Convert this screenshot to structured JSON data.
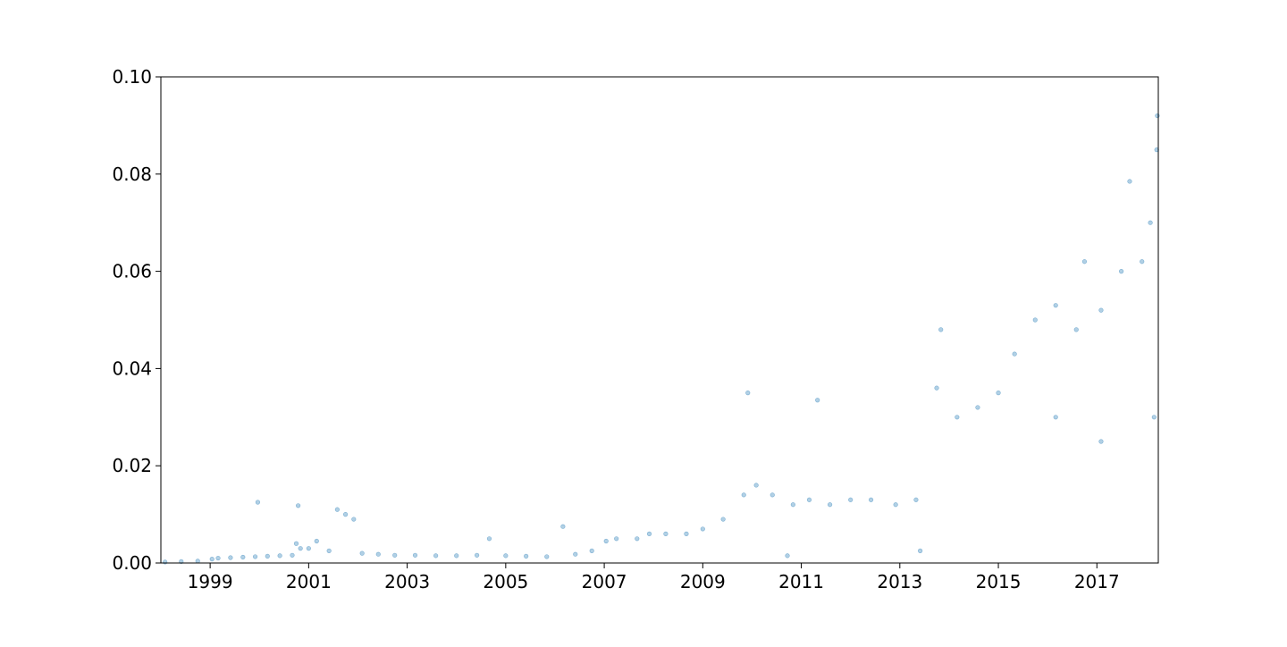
{
  "chart_data": {
    "type": "scatter",
    "title": "",
    "xlabel": "",
    "ylabel": "",
    "x_axis_type": "date",
    "xlim": [
      "1998-01-01",
      "2018-04-01"
    ],
    "ylim": [
      0.0,
      0.1
    ],
    "x_tick_labels": [
      "1999",
      "2001",
      "2003",
      "2005",
      "2007",
      "2009",
      "2011",
      "2013",
      "2015",
      "2017"
    ],
    "y_tick_labels": [
      "0.00",
      "0.02",
      "0.04",
      "0.06",
      "0.08",
      "0.10"
    ],
    "grid": false,
    "legend": "none",
    "marker_color": "#1f77b4",
    "marker_alpha": 0.35,
    "series": [
      {
        "points": [
          [
            "1998-02-01",
            0.0002
          ],
          [
            "1998-06-01",
            0.0003
          ],
          [
            "1998-10-01",
            0.0004
          ],
          [
            "1999-01-15",
            0.0008
          ],
          [
            "1999-03-01",
            0.001
          ],
          [
            "1999-06-01",
            0.0011
          ],
          [
            "1999-09-01",
            0.0012
          ],
          [
            "1999-12-01",
            0.0013
          ],
          [
            "1999-12-20",
            0.0125
          ],
          [
            "2000-03-01",
            0.0014
          ],
          [
            "2000-06-01",
            0.0015
          ],
          [
            "2000-09-01",
            0.0016
          ],
          [
            "2000-10-01",
            0.004
          ],
          [
            "2000-11-01",
            0.003
          ],
          [
            "2000-10-15",
            0.0118
          ],
          [
            "2001-01-01",
            0.003
          ],
          [
            "2001-03-01",
            0.0045
          ],
          [
            "2001-06-01",
            0.0025
          ],
          [
            "2001-08-01",
            0.011
          ],
          [
            "2001-10-01",
            0.01
          ],
          [
            "2001-12-01",
            0.009
          ],
          [
            "2002-02-01",
            0.002
          ],
          [
            "2002-06-01",
            0.0018
          ],
          [
            "2002-10-01",
            0.0016
          ],
          [
            "2003-03-01",
            0.0016
          ],
          [
            "2003-08-01",
            0.0015
          ],
          [
            "2004-01-01",
            0.0015
          ],
          [
            "2004-06-01",
            0.0016
          ],
          [
            "2004-09-01",
            0.005
          ],
          [
            "2005-01-01",
            0.0015
          ],
          [
            "2005-06-01",
            0.0014
          ],
          [
            "2005-11-01",
            0.0013
          ],
          [
            "2006-03-01",
            0.0075
          ],
          [
            "2006-06-01",
            0.0018
          ],
          [
            "2006-10-01",
            0.0025
          ],
          [
            "2007-01-15",
            0.0045
          ],
          [
            "2007-04-01",
            0.005
          ],
          [
            "2007-09-01",
            0.005
          ],
          [
            "2007-12-01",
            0.006
          ],
          [
            "2008-04-01",
            0.006
          ],
          [
            "2008-09-01",
            0.006
          ],
          [
            "2009-01-01",
            0.007
          ],
          [
            "2009-06-01",
            0.009
          ],
          [
            "2009-11-01",
            0.014
          ],
          [
            "2009-12-01",
            0.035
          ],
          [
            "2010-02-01",
            0.016
          ],
          [
            "2010-06-01",
            0.014
          ],
          [
            "2010-09-20",
            0.0015
          ],
          [
            "2010-11-01",
            0.012
          ],
          [
            "2011-03-01",
            0.013
          ],
          [
            "2011-05-01",
            0.0335
          ],
          [
            "2011-08-01",
            0.012
          ],
          [
            "2012-01-01",
            0.013
          ],
          [
            "2012-06-01",
            0.013
          ],
          [
            "2012-12-01",
            0.012
          ],
          [
            "2013-05-01",
            0.013
          ],
          [
            "2013-06-01",
            0.0025
          ],
          [
            "2013-10-01",
            0.036
          ],
          [
            "2013-11-01",
            0.048
          ],
          [
            "2014-03-01",
            0.03
          ],
          [
            "2014-08-01",
            0.032
          ],
          [
            "2015-01-01",
            0.035
          ],
          [
            "2015-05-01",
            0.043
          ],
          [
            "2015-10-01",
            0.05
          ],
          [
            "2016-03-01",
            0.053
          ],
          [
            "2016-03-01",
            0.03
          ],
          [
            "2016-08-01",
            0.048
          ],
          [
            "2016-10-01",
            0.062
          ],
          [
            "2017-02-01",
            0.052
          ],
          [
            "2017-02-01",
            0.025
          ],
          [
            "2017-07-01",
            0.06
          ],
          [
            "2017-09-01",
            0.0785
          ],
          [
            "2017-12-01",
            0.062
          ],
          [
            "2018-02-01",
            0.07
          ],
          [
            "2018-03-25",
            0.092
          ],
          [
            "2018-03-20",
            0.085
          ],
          [
            "2018-03-01",
            0.03
          ]
        ]
      }
    ]
  }
}
